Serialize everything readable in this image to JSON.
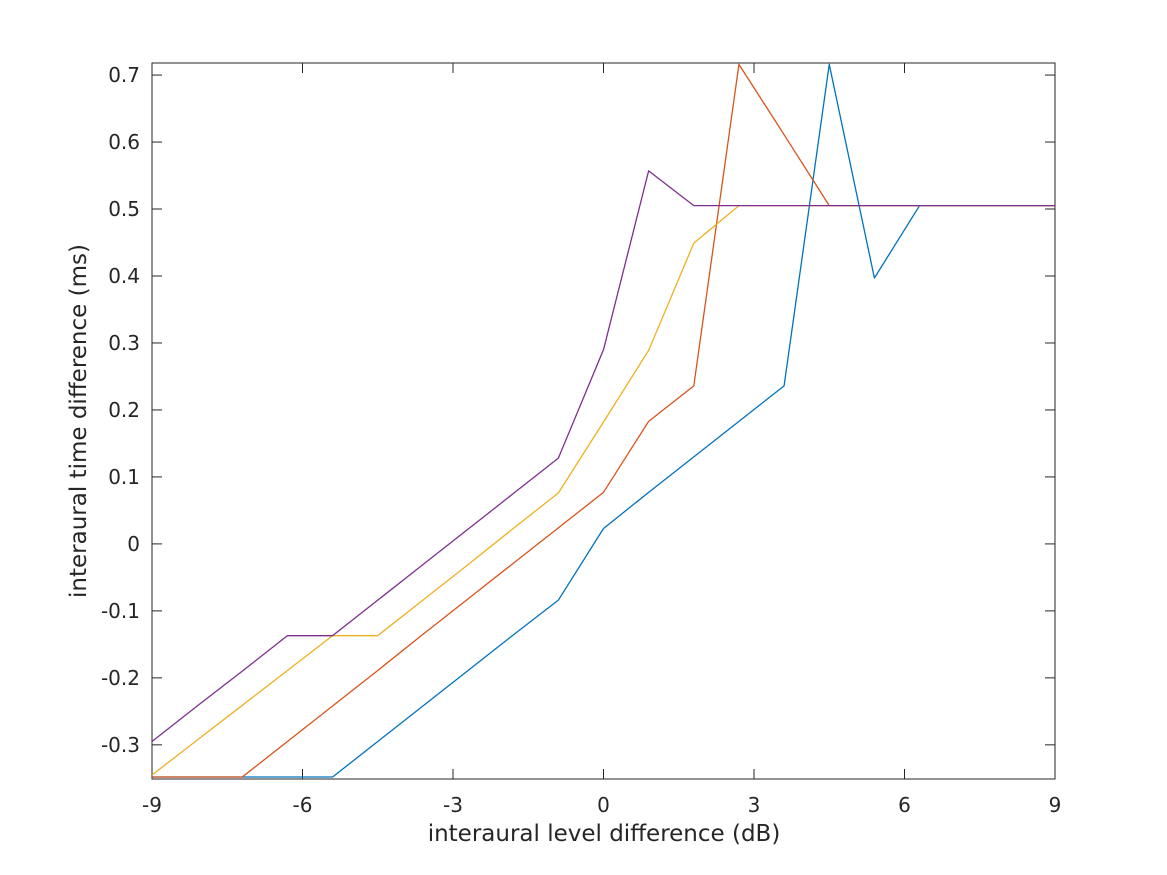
{
  "figure": {
    "background": "#ffffff",
    "axis_color": "#262626",
    "text_color": "#262626"
  },
  "chart_data": {
    "type": "line",
    "title": "",
    "xlabel": "interaural level difference (dB)",
    "ylabel": "interaural time difference (ms)",
    "xlim": [
      -9,
      9
    ],
    "ylim": [
      -0.351,
      0.718
    ],
    "grid": false,
    "legend": "none",
    "box": true,
    "tick_direction": "in",
    "x_ticks": [
      -9,
      -6,
      -3,
      0,
      3,
      6,
      9
    ],
    "x_tick_labels": [
      "-9",
      "-6",
      "-3",
      "0",
      "3",
      "6",
      "9"
    ],
    "y_ticks": [
      0.7,
      0.6,
      0.5,
      0.4,
      0.3,
      0.2,
      0.1,
      0,
      -0.1,
      -0.2,
      -0.3
    ],
    "y_tick_labels": [
      "0.7",
      "0.6",
      "0.5",
      "0.4",
      "0.3",
      "0.2",
      "0.1",
      "0",
      "-0.1",
      "-0.2",
      "-0.3"
    ],
    "x": [
      -9,
      -8.1,
      -7.2,
      -6.3,
      -5.4,
      -4.5,
      -3.6,
      -2.7,
      -1.8,
      -0.9,
      0,
      0.9,
      1.8,
      2.7,
      3.6,
      4.5,
      5.4,
      6.3,
      7.2,
      8.1,
      9
    ],
    "series": [
      {
        "name": "series-1-blue",
        "color": "#0072BD",
        "values": [
          -0.348,
          -0.348,
          -0.348,
          -0.348,
          -0.348,
          -0.295,
          -0.242,
          -0.189,
          -0.136,
          -0.084,
          0.023,
          0.077,
          0.13,
          0.183,
          0.236,
          0.716,
          0.397,
          0.505,
          0.505,
          0.505,
          0.505
        ]
      },
      {
        "name": "series-2-orange",
        "color": "#D95319",
        "values": [
          -0.348,
          -0.348,
          -0.348,
          -0.295,
          -0.242,
          -0.189,
          -0.135,
          -0.082,
          -0.029,
          0.024,
          0.077,
          0.183,
          0.236,
          0.716,
          0.611,
          0.505,
          0.505,
          0.505,
          0.505,
          0.505,
          0.505
        ]
      },
      {
        "name": "series-3-yellow",
        "color": "#EDB120",
        "values": [
          -0.345,
          -0.293,
          -0.241,
          -0.189,
          -0.137,
          -0.137,
          -0.084,
          -0.031,
          0.023,
          0.076,
          0.182,
          0.289,
          0.449,
          0.505,
          0.505,
          0.505,
          0.505,
          0.505,
          0.505,
          0.505,
          0.505
        ]
      },
      {
        "name": "series-4-purple",
        "color": "#7E2F8E",
        "values": [
          -0.295,
          -0.242,
          -0.19,
          -0.137,
          -0.137,
          -0.084,
          -0.031,
          0.022,
          0.075,
          0.128,
          0.29,
          0.557,
          0.505,
          0.505,
          0.505,
          0.505,
          0.505,
          0.505,
          0.505,
          0.505,
          0.505
        ]
      }
    ]
  }
}
